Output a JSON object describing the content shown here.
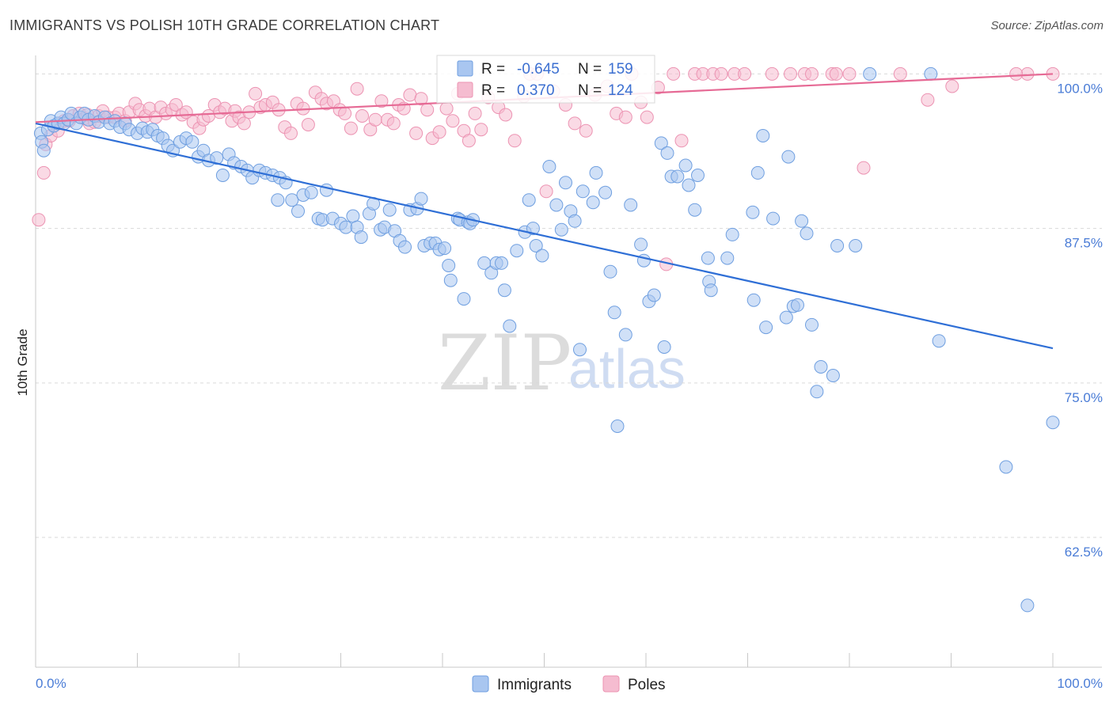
{
  "chart_data": {
    "type": "scatter",
    "title": "IMMIGRANTS VS POLISH 10TH GRADE CORRELATION CHART",
    "source": "Source: ZipAtlas.com",
    "ylabel": "10th Grade",
    "xlim": [
      0,
      100
    ],
    "ylim": [
      52,
      101.5
    ],
    "y_ticks": [
      "100.0%",
      "87.5%",
      "75.0%",
      "62.5%"
    ],
    "y_tick_values": [
      100,
      87.5,
      75,
      62.5
    ],
    "x_tick_labels": [
      "0.0%",
      "100.0%"
    ],
    "grid": true,
    "legend_position": "bottom",
    "watermark": {
      "zip": "ZIP",
      "atlas": "atlas"
    },
    "colors": {
      "immigrants_fill": "#a9c6f0",
      "immigrants_stroke": "#6f9fe0",
      "immigrants_line": "#2f6fd6",
      "poles_fill": "#f5bcd0",
      "poles_stroke": "#ec93b2",
      "poles_line": "#e66a95",
      "tick_label": "#4a7cd6",
      "grid": "#d9d9d9"
    },
    "stats": [
      {
        "r_label": "R =",
        "r_value": "-0.645",
        "n_label": "N =",
        "n_value": "159"
      },
      {
        "r_label": "R =",
        "r_value": "0.370",
        "n_label": "N =",
        "n_value": "124"
      }
    ],
    "series": [
      {
        "name": "Immigrants",
        "trend": {
          "x": [
            0,
            100
          ],
          "y": [
            96.0,
            77.8
          ]
        },
        "points": [
          [
            0.5,
            95.2
          ],
          [
            0.6,
            94.5
          ],
          [
            0.8,
            93.8
          ],
          [
            1.2,
            95.5
          ],
          [
            1.5,
            96.2
          ],
          [
            1.8,
            95.8
          ],
          [
            2.2,
            96.0
          ],
          [
            2.5,
            96.5
          ],
          [
            2.8,
            96.0
          ],
          [
            3.2,
            96.3
          ],
          [
            3.5,
            96.8
          ],
          [
            4.0,
            96.0
          ],
          [
            4.4,
            96.5
          ],
          [
            4.8,
            96.8
          ],
          [
            5.2,
            96.3
          ],
          [
            5.8,
            96.6
          ],
          [
            6.2,
            96.1
          ],
          [
            6.8,
            96.5
          ],
          [
            7.3,
            96.0
          ],
          [
            7.8,
            96.2
          ],
          [
            8.3,
            95.7
          ],
          [
            8.8,
            96.0
          ],
          [
            9.2,
            95.5
          ],
          [
            10.0,
            95.2
          ],
          [
            10.5,
            95.6
          ],
          [
            11.0,
            95.3
          ],
          [
            11.5,
            95.5
          ],
          [
            12.0,
            95.0
          ],
          [
            12.5,
            94.8
          ],
          [
            13.0,
            94.2
          ],
          [
            13.5,
            93.8
          ],
          [
            14.2,
            94.5
          ],
          [
            14.8,
            94.8
          ],
          [
            15.4,
            94.5
          ],
          [
            16.0,
            93.3
          ],
          [
            16.5,
            93.8
          ],
          [
            17.0,
            93.0
          ],
          [
            17.8,
            93.2
          ],
          [
            18.4,
            91.8
          ],
          [
            19.0,
            93.5
          ],
          [
            19.5,
            92.8
          ],
          [
            20.2,
            92.5
          ],
          [
            20.8,
            92.2
          ],
          [
            21.3,
            91.6
          ],
          [
            22.0,
            92.2
          ],
          [
            22.6,
            92.0
          ],
          [
            23.3,
            91.8
          ],
          [
            24.0,
            91.6
          ],
          [
            24.6,
            91.2
          ],
          [
            23.8,
            89.8
          ],
          [
            25.2,
            89.8
          ],
          [
            25.8,
            88.9
          ],
          [
            26.3,
            90.2
          ],
          [
            27.1,
            90.4
          ],
          [
            27.8,
            88.3
          ],
          [
            28.2,
            88.2
          ],
          [
            28.6,
            90.6
          ],
          [
            29.2,
            88.3
          ],
          [
            30.0,
            87.9
          ],
          [
            30.5,
            87.6
          ],
          [
            31.2,
            88.5
          ],
          [
            31.6,
            87.6
          ],
          [
            32.0,
            86.8
          ],
          [
            32.8,
            88.7
          ],
          [
            33.2,
            89.5
          ],
          [
            33.9,
            87.4
          ],
          [
            34.3,
            87.6
          ],
          [
            34.8,
            89.0
          ],
          [
            35.3,
            87.3
          ],
          [
            35.8,
            86.5
          ],
          [
            36.3,
            86.0
          ],
          [
            36.8,
            89.0
          ],
          [
            37.5,
            89.1
          ],
          [
            37.9,
            89.9
          ],
          [
            38.2,
            86.1
          ],
          [
            38.8,
            86.3
          ],
          [
            39.3,
            86.3
          ],
          [
            39.7,
            85.8
          ],
          [
            40.2,
            85.9
          ],
          [
            40.6,
            84.5
          ],
          [
            40.8,
            83.3
          ],
          [
            41.5,
            88.3
          ],
          [
            41.7,
            88.2
          ],
          [
            42.1,
            81.8
          ],
          [
            42.5,
            88.0
          ],
          [
            42.7,
            87.9
          ],
          [
            43.0,
            88.2
          ],
          [
            44.1,
            84.7
          ],
          [
            44.8,
            83.9
          ],
          [
            45.3,
            84.7
          ],
          [
            45.8,
            84.7
          ],
          [
            46.1,
            82.5
          ],
          [
            46.6,
            79.6
          ],
          [
            47.3,
            85.7
          ],
          [
            48.1,
            87.2
          ],
          [
            48.5,
            89.8
          ],
          [
            48.9,
            87.5
          ],
          [
            49.2,
            86.1
          ],
          [
            49.8,
            85.3
          ],
          [
            50.5,
            92.5
          ],
          [
            51.2,
            89.4
          ],
          [
            51.7,
            87.4
          ],
          [
            52.1,
            91.2
          ],
          [
            52.6,
            88.9
          ],
          [
            53.0,
            88.1
          ],
          [
            53.5,
            77.7
          ],
          [
            53.8,
            90.5
          ],
          [
            54.8,
            89.6
          ],
          [
            55.1,
            92.0
          ],
          [
            56.0,
            90.4
          ],
          [
            56.5,
            84.0
          ],
          [
            56.9,
            80.7
          ],
          [
            57.2,
            71.5
          ],
          [
            58.0,
            78.9
          ],
          [
            58.5,
            89.4
          ],
          [
            59.5,
            86.2
          ],
          [
            59.8,
            84.9
          ],
          [
            60.3,
            81.6
          ],
          [
            60.8,
            82.1
          ],
          [
            61.5,
            94.4
          ],
          [
            61.8,
            77.9
          ],
          [
            62.1,
            93.6
          ],
          [
            62.5,
            91.7
          ],
          [
            63.1,
            91.7
          ],
          [
            63.9,
            92.6
          ],
          [
            64.2,
            91.0
          ],
          [
            64.8,
            89.0
          ],
          [
            65.1,
            91.8
          ],
          [
            66.1,
            85.1
          ],
          [
            66.2,
            83.2
          ],
          [
            66.4,
            82.5
          ],
          [
            68.0,
            85.1
          ],
          [
            68.5,
            87.0
          ],
          [
            70.5,
            88.8
          ],
          [
            70.6,
            81.7
          ],
          [
            71.0,
            92.0
          ],
          [
            71.5,
            95.0
          ],
          [
            71.8,
            79.5
          ],
          [
            72.5,
            88.3
          ],
          [
            73.8,
            80.3
          ],
          [
            74.0,
            93.3
          ],
          [
            74.5,
            81.2
          ],
          [
            74.9,
            81.3
          ],
          [
            75.3,
            88.1
          ],
          [
            75.8,
            87.1
          ],
          [
            76.3,
            79.7
          ],
          [
            76.8,
            74.3
          ],
          [
            77.2,
            76.3
          ],
          [
            78.4,
            75.6
          ],
          [
            78.8,
            86.1
          ],
          [
            80.6,
            86.1
          ],
          [
            82.0,
            100.0
          ],
          [
            88.0,
            100.0
          ],
          [
            88.8,
            78.4
          ],
          [
            95.4,
            68.2
          ],
          [
            97.5,
            57.0
          ],
          [
            100.0,
            71.8
          ]
        ]
      },
      {
        "name": "Poles",
        "trend": {
          "x": [
            0,
            100
          ],
          "y": [
            96.1,
            100.0
          ]
        },
        "points": [
          [
            0.3,
            88.2
          ],
          [
            0.8,
            92.0
          ],
          [
            1.0,
            94.3
          ],
          [
            1.5,
            95.0
          ],
          [
            2.2,
            95.4
          ],
          [
            2.8,
            96.2
          ],
          [
            3.3,
            96.2
          ],
          [
            3.7,
            96.6
          ],
          [
            4.3,
            96.8
          ],
          [
            4.8,
            96.4
          ],
          [
            5.1,
            96.7
          ],
          [
            5.3,
            96.0
          ],
          [
            5.8,
            96.1
          ],
          [
            6.2,
            96.6
          ],
          [
            6.6,
            97.0
          ],
          [
            7.1,
            96.5
          ],
          [
            7.8,
            96.5
          ],
          [
            8.2,
            96.8
          ],
          [
            8.8,
            96.2
          ],
          [
            9.2,
            96.9
          ],
          [
            9.8,
            97.6
          ],
          [
            10.2,
            97.1
          ],
          [
            10.8,
            96.6
          ],
          [
            11.2,
            97.2
          ],
          [
            11.8,
            96.5
          ],
          [
            12.3,
            97.3
          ],
          [
            12.8,
            96.8
          ],
          [
            13.4,
            97.1
          ],
          [
            13.8,
            97.5
          ],
          [
            14.4,
            96.7
          ],
          [
            14.8,
            96.9
          ],
          [
            15.5,
            96.1
          ],
          [
            16.1,
            95.6
          ],
          [
            16.5,
            96.3
          ],
          [
            17.0,
            96.6
          ],
          [
            17.6,
            97.5
          ],
          [
            18.1,
            96.9
          ],
          [
            18.6,
            97.2
          ],
          [
            19.3,
            96.2
          ],
          [
            19.6,
            97.0
          ],
          [
            20.0,
            96.5
          ],
          [
            20.5,
            96.0
          ],
          [
            21.0,
            96.9
          ],
          [
            21.6,
            98.4
          ],
          [
            22.1,
            97.3
          ],
          [
            22.6,
            97.5
          ],
          [
            23.3,
            97.7
          ],
          [
            23.9,
            97.1
          ],
          [
            24.5,
            95.7
          ],
          [
            25.1,
            95.2
          ],
          [
            25.7,
            97.6
          ],
          [
            26.3,
            97.2
          ],
          [
            26.8,
            95.9
          ],
          [
            27.5,
            98.5
          ],
          [
            28.1,
            98.0
          ],
          [
            28.6,
            97.6
          ],
          [
            29.3,
            97.8
          ],
          [
            29.9,
            97.1
          ],
          [
            30.4,
            96.8
          ],
          [
            31.0,
            95.6
          ],
          [
            31.6,
            98.8
          ],
          [
            32.1,
            96.6
          ],
          [
            32.9,
            95.5
          ],
          [
            33.4,
            96.3
          ],
          [
            34.0,
            97.8
          ],
          [
            34.6,
            96.3
          ],
          [
            35.2,
            96.0
          ],
          [
            35.7,
            97.5
          ],
          [
            36.2,
            97.2
          ],
          [
            36.8,
            98.3
          ],
          [
            37.4,
            95.2
          ],
          [
            37.9,
            98.0
          ],
          [
            38.5,
            97.1
          ],
          [
            39.0,
            94.8
          ],
          [
            39.7,
            95.3
          ],
          [
            40.4,
            97.2
          ],
          [
            41.0,
            96.2
          ],
          [
            41.5,
            98.4
          ],
          [
            42.1,
            95.4
          ],
          [
            42.6,
            94.6
          ],
          [
            43.2,
            96.8
          ],
          [
            43.8,
            95.5
          ],
          [
            44.5,
            98.1
          ],
          [
            45.5,
            97.3
          ],
          [
            46.2,
            96.7
          ],
          [
            47.1,
            94.6
          ],
          [
            48.0,
            98.2
          ],
          [
            48.6,
            100.0
          ],
          [
            49.3,
            100.0
          ],
          [
            50.2,
            90.5
          ],
          [
            50.9,
            98.6
          ],
          [
            52.1,
            97.5
          ],
          [
            53.0,
            96.0
          ],
          [
            54.1,
            95.4
          ],
          [
            55.0,
            98.3
          ],
          [
            56.2,
            99.0
          ],
          [
            57.1,
            96.8
          ],
          [
            58.0,
            96.5
          ],
          [
            58.6,
            100.0
          ],
          [
            59.5,
            97.7
          ],
          [
            60.1,
            96.5
          ],
          [
            61.2,
            98.9
          ],
          [
            62.0,
            84.6
          ],
          [
            62.7,
            100.0
          ],
          [
            63.5,
            94.6
          ],
          [
            64.8,
            100.0
          ],
          [
            65.6,
            100.0
          ],
          [
            66.6,
            100.0
          ],
          [
            67.4,
            100.0
          ],
          [
            68.7,
            100.0
          ],
          [
            69.7,
            100.0
          ],
          [
            72.4,
            100.0
          ],
          [
            74.2,
            100.0
          ],
          [
            75.6,
            100.0
          ],
          [
            76.3,
            100.0
          ],
          [
            78.3,
            100.0
          ],
          [
            78.7,
            100.0
          ],
          [
            80.0,
            100.0
          ],
          [
            81.4,
            92.4
          ],
          [
            85.0,
            100.0
          ],
          [
            87.7,
            97.9
          ],
          [
            97.5,
            100.0
          ],
          [
            100.0,
            100.0
          ],
          [
            96.4,
            100.0
          ],
          [
            90.1,
            99.0
          ]
        ]
      }
    ]
  }
}
